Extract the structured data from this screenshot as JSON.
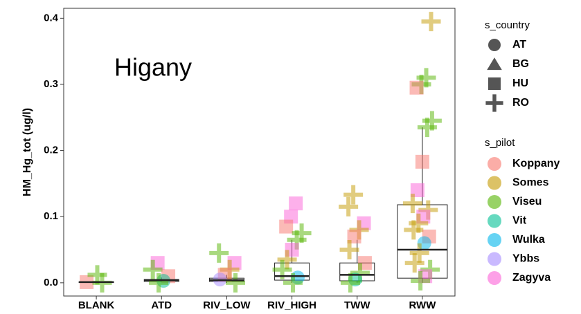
{
  "chart_data": {
    "type": "boxplot",
    "annotation": "Higany",
    "y_label": "HM_Hg_tot (ug/l)",
    "categories": [
      "BLANK",
      "ATD",
      "RIV_LOW",
      "RIV_HIGH",
      "TWW",
      "RWW"
    ],
    "boxes": {
      "whislo": [
        0,
        0.001,
        0,
        0,
        0,
        0
      ],
      "q1": [
        0.0005,
        0.002,
        0.002,
        0.004,
        0.003,
        0.007
      ],
      "median": [
        0.001,
        0.004,
        0.004,
        0.01,
        0.012,
        0.05
      ],
      "q3": [
        0.0015,
        0.005,
        0.007,
        0.03,
        0.03,
        0.118
      ],
      "whishi": [
        0.002,
        0.008,
        0.012,
        0.065,
        0.065,
        0.235
      ]
    },
    "ylim": [
      -0.02,
      0.415
    ],
    "yticks": [
      {
        "value": 0,
        "label": "0.0"
      },
      0.1,
      0.2,
      0.3,
      0.4
    ],
    "country_legend_title": "s_country",
    "countries": [
      {
        "name": "AT",
        "shape": "circle"
      },
      {
        "name": "BG",
        "shape": "triangle"
      },
      {
        "name": "HU",
        "shape": "square"
      },
      {
        "name": "RO",
        "shape": "plus"
      }
    ],
    "pilot_legend_title": "s_pilot",
    "pilots": [
      {
        "name": "Koppany",
        "color": "#f8766d"
      },
      {
        "name": "Somes",
        "color": "#c49a00"
      },
      {
        "name": "Viseu",
        "color": "#53b400"
      },
      {
        "name": "Vit",
        "color": "#00c094"
      },
      {
        "name": "Wulka",
        "color": "#00b6eb"
      },
      {
        "name": "Ybbs",
        "color": "#a58aff"
      },
      {
        "name": "Zagyva",
        "color": "#fb61d7"
      }
    ],
    "points": [
      {
        "category": "BLANK",
        "value": 0.001,
        "pilot": "Koppany",
        "country": "HU"
      },
      {
        "category": "BLANK",
        "value": 0.0,
        "pilot": "Viseu",
        "country": "RO"
      },
      {
        "category": "BLANK",
        "value": 0.012,
        "pilot": "Viseu",
        "country": "RO"
      },
      {
        "category": "ATD",
        "value": 0.03,
        "pilot": "Zagyva",
        "country": "HU"
      },
      {
        "category": "ATD",
        "value": 0.02,
        "pilot": "Viseu",
        "country": "RO"
      },
      {
        "category": "ATD",
        "value": 0.01,
        "pilot": "Koppany",
        "country": "HU"
      },
      {
        "category": "ATD",
        "value": 0.003,
        "pilot": "Vit",
        "country": "AT"
      },
      {
        "category": "ATD",
        "value": 0.0,
        "pilot": "Viseu",
        "country": "RO"
      },
      {
        "category": "RIV_LOW",
        "value": 0.045,
        "pilot": "Viseu",
        "country": "RO"
      },
      {
        "category": "RIV_LOW",
        "value": 0.03,
        "pilot": "Zagyva",
        "country": "HU"
      },
      {
        "category": "RIV_LOW",
        "value": 0.02,
        "pilot": "Somes",
        "country": "RO"
      },
      {
        "category": "RIV_LOW",
        "value": 0.012,
        "pilot": "Koppany",
        "country": "HU"
      },
      {
        "category": "RIV_LOW",
        "value": 0.005,
        "pilot": "Ybbs",
        "country": "AT"
      },
      {
        "category": "RIV_LOW",
        "value": 0.0,
        "pilot": "Viseu",
        "country": "RO"
      },
      {
        "category": "RIV_HIGH",
        "value": 0.12,
        "pilot": "Zagyva",
        "country": "HU"
      },
      {
        "category": "RIV_HIGH",
        "value": 0.1,
        "pilot": "Zagyva",
        "country": "HU"
      },
      {
        "category": "RIV_HIGH",
        "value": 0.085,
        "pilot": "Koppany",
        "country": "HU"
      },
      {
        "category": "RIV_HIGH",
        "value": 0.075,
        "pilot": "Viseu",
        "country": "RO"
      },
      {
        "category": "RIV_HIGH",
        "value": 0.065,
        "pilot": "Viseu",
        "country": "RO"
      },
      {
        "category": "RIV_HIGH",
        "value": 0.05,
        "pilot": "Zagyva",
        "country": "HU"
      },
      {
        "category": "RIV_HIGH",
        "value": 0.035,
        "pilot": "Somes",
        "country": "RO"
      },
      {
        "category": "RIV_HIGH",
        "value": 0.02,
        "pilot": "Viseu",
        "country": "RO"
      },
      {
        "category": "RIV_HIGH",
        "value": 0.008,
        "pilot": "Wulka",
        "country": "AT"
      },
      {
        "category": "RIV_HIGH",
        "value": 0.0,
        "pilot": "Viseu",
        "country": "RO"
      },
      {
        "category": "TWW",
        "value": 0.133,
        "pilot": "Somes",
        "country": "RO"
      },
      {
        "category": "TWW",
        "value": 0.115,
        "pilot": "Somes",
        "country": "RO"
      },
      {
        "category": "TWW",
        "value": 0.09,
        "pilot": "Zagyva",
        "country": "HU"
      },
      {
        "category": "TWW",
        "value": 0.08,
        "pilot": "Somes",
        "country": "RO"
      },
      {
        "category": "TWW",
        "value": 0.07,
        "pilot": "Koppany",
        "country": "HU"
      },
      {
        "category": "TWW",
        "value": 0.05,
        "pilot": "Somes",
        "country": "RO"
      },
      {
        "category": "TWW",
        "value": 0.03,
        "pilot": "Koppany",
        "country": "HU"
      },
      {
        "category": "TWW",
        "value": 0.015,
        "pilot": "Viseu",
        "country": "RO"
      },
      {
        "category": "TWW",
        "value": 0.005,
        "pilot": "Vit",
        "country": "AT"
      },
      {
        "category": "TWW",
        "value": 0.0,
        "pilot": "Viseu",
        "country": "RO"
      },
      {
        "category": "RWW",
        "value": 0.395,
        "pilot": "Somes",
        "country": "RO"
      },
      {
        "category": "RWW",
        "value": 0.31,
        "pilot": "Viseu",
        "country": "RO"
      },
      {
        "category": "RWW",
        "value": 0.3,
        "pilot": "Viseu",
        "country": "RO"
      },
      {
        "category": "RWW",
        "value": 0.295,
        "pilot": "Koppany",
        "country": "HU"
      },
      {
        "category": "RWW",
        "value": 0.245,
        "pilot": "Viseu",
        "country": "RO"
      },
      {
        "category": "RWW",
        "value": 0.235,
        "pilot": "Viseu",
        "country": "RO"
      },
      {
        "category": "RWW",
        "value": 0.183,
        "pilot": "Koppany",
        "country": "HU"
      },
      {
        "category": "RWW",
        "value": 0.14,
        "pilot": "Zagyva",
        "country": "HU"
      },
      {
        "category": "RWW",
        "value": 0.12,
        "pilot": "Somes",
        "country": "RO"
      },
      {
        "category": "RWW",
        "value": 0.11,
        "pilot": "Somes",
        "country": "RO"
      },
      {
        "category": "RWW",
        "value": 0.1,
        "pilot": "Zagyva",
        "country": "HU"
      },
      {
        "category": "RWW",
        "value": 0.09,
        "pilot": "Somes",
        "country": "RO"
      },
      {
        "category": "RWW",
        "value": 0.08,
        "pilot": "Somes",
        "country": "RO"
      },
      {
        "category": "RWW",
        "value": 0.07,
        "pilot": "Koppany",
        "country": "HU"
      },
      {
        "category": "RWW",
        "value": 0.06,
        "pilot": "Wulka",
        "country": "AT"
      },
      {
        "category": "RWW",
        "value": 0.045,
        "pilot": "Somes",
        "country": "RO"
      },
      {
        "category": "RWW",
        "value": 0.03,
        "pilot": "Somes",
        "country": "RO"
      },
      {
        "category": "RWW",
        "value": 0.02,
        "pilot": "Viseu",
        "country": "RO"
      },
      {
        "category": "RWW",
        "value": 0.01,
        "pilot": "Zagyva",
        "country": "HU"
      },
      {
        "category": "RWW",
        "value": 0.003,
        "pilot": "Viseu",
        "country": "RO"
      }
    ]
  }
}
